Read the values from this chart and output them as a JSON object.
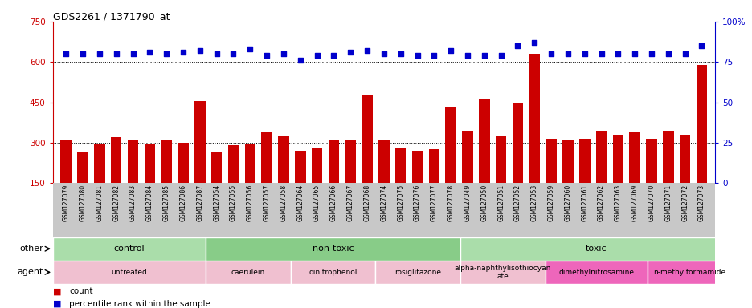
{
  "title": "GDS2261 / 1371790_at",
  "categories": [
    "GSM127079",
    "GSM127080",
    "GSM127081",
    "GSM127082",
    "GSM127083",
    "GSM127084",
    "GSM127085",
    "GSM127086",
    "GSM127087",
    "GSM127054",
    "GSM127055",
    "GSM127056",
    "GSM127057",
    "GSM127058",
    "GSM127064",
    "GSM127065",
    "GSM127066",
    "GSM127067",
    "GSM127068",
    "GSM127074",
    "GSM127075",
    "GSM127076",
    "GSM127077",
    "GSM127078",
    "GSM127049",
    "GSM127050",
    "GSM127051",
    "GSM127052",
    "GSM127053",
    "GSM127059",
    "GSM127060",
    "GSM127061",
    "GSM127062",
    "GSM127063",
    "GSM127069",
    "GSM127070",
    "GSM127071",
    "GSM127072",
    "GSM127073"
  ],
  "bar_values": [
    310,
    265,
    295,
    320,
    310,
    295,
    310,
    300,
    455,
    265,
    290,
    295,
    340,
    325,
    270,
    280,
    310,
    310,
    480,
    310,
    280,
    270,
    275,
    435,
    345,
    460,
    325,
    450,
    630,
    315,
    310,
    315,
    345,
    330,
    340,
    315,
    345,
    330,
    590
  ],
  "percentile_values": [
    80,
    80,
    80,
    80,
    80,
    81,
    80,
    81,
    82,
    80,
    80,
    83,
    79,
    80,
    76,
    79,
    79,
    81,
    82,
    80,
    80,
    79,
    79,
    82,
    79,
    79,
    79,
    85,
    87,
    80,
    80,
    80,
    80,
    80,
    80,
    80,
    80,
    80,
    85
  ],
  "ylim_left": [
    150,
    750
  ],
  "ylim_right": [
    0,
    100
  ],
  "yticks_left": [
    150,
    300,
    450,
    600,
    750
  ],
  "yticks_right": [
    0,
    25,
    50,
    75,
    100
  ],
  "bar_color": "#cc0000",
  "dot_color": "#0000cc",
  "hlines": [
    300,
    450,
    600
  ],
  "other_groups": [
    {
      "label": "control",
      "start": 0,
      "end": 9,
      "color": "#aaddaa"
    },
    {
      "label": "non-toxic",
      "start": 9,
      "end": 24,
      "color": "#88cc88"
    },
    {
      "label": "toxic",
      "start": 24,
      "end": 40,
      "color": "#aaddaa"
    }
  ],
  "agent_groups": [
    {
      "label": "untreated",
      "start": 0,
      "end": 9,
      "color": "#f0c0d0"
    },
    {
      "label": "caerulein",
      "start": 9,
      "end": 14,
      "color": "#f0c0d0"
    },
    {
      "label": "dinitrophenol",
      "start": 14,
      "end": 19,
      "color": "#f0c0d0"
    },
    {
      "label": "rosiglitazone",
      "start": 19,
      "end": 24,
      "color": "#f0c0d0"
    },
    {
      "label": "alpha-naphthylisothiocyan\nate",
      "start": 24,
      "end": 29,
      "color": "#f0c0d0"
    },
    {
      "label": "dimethylnitrosamine",
      "start": 29,
      "end": 35,
      "color": "#ee66bb"
    },
    {
      "label": "n-methylformamide",
      "start": 35,
      "end": 40,
      "color": "#ee66bb"
    }
  ],
  "legend_count_color": "#cc0000",
  "legend_dot_color": "#0000cc",
  "xlabel_fontsize": 5.5,
  "title_fontsize": 9
}
